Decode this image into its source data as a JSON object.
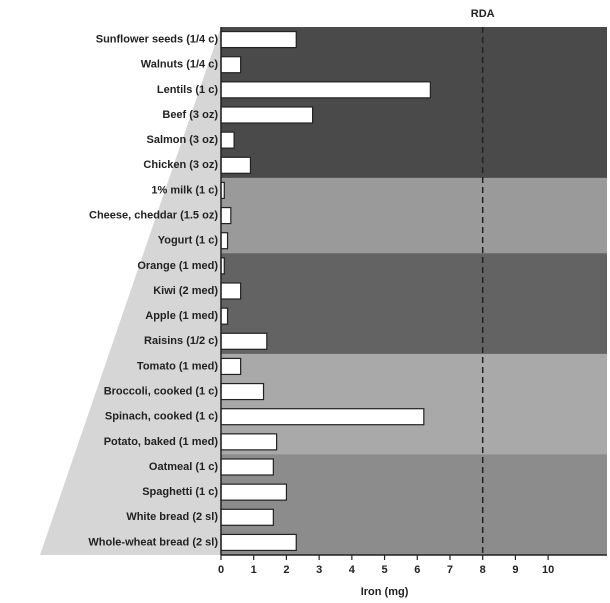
{
  "chart_data": {
    "type": "barh",
    "xlabel": "Iron (mg)",
    "categories": [
      "Sunflower seeds (1/4 c)",
      "Walnuts (1/4 c)",
      "Lentils (1 c)",
      "Beef (3 oz)",
      "Salmon (3 oz)",
      "Chicken (3 oz)",
      "1% milk (1 c)",
      "Cheese, cheddar (1.5 oz)",
      "Yogurt (1 c)",
      "Orange (1 med)",
      "Kiwi (2 med)",
      "Apple (1 med)",
      "Raisins (1/2 c)",
      "Tomato (1 med)",
      "Broccoli, cooked (1 c)",
      "Spinach, cooked (1 c)",
      "Potato, baked (1 med)",
      "Oatmeal (1 c)",
      "Spaghetti (1 c)",
      "White bread (2 sl)",
      "Whole-wheat bread (2 sl)"
    ],
    "values": [
      2.3,
      0.6,
      6.4,
      2.8,
      0.4,
      0.9,
      0.1,
      0.3,
      0.2,
      0.1,
      0.6,
      0.2,
      1.4,
      0.6,
      1.3,
      6.2,
      1.7,
      1.6,
      2.0,
      1.6,
      2.3
    ],
    "color": "#ffffff",
    "band_colors": [
      "#4a4a4a",
      "#4a4a4a",
      "#4a4a4a",
      "#4a4a4a",
      "#4a4a4a",
      "#4a4a4a",
      "#9a9a9a",
      "#9a9a9a",
      "#9a9a9a",
      "#636363",
      "#636363",
      "#636363",
      "#636363",
      "#a9a9a9",
      "#a9a9a9",
      "#a9a9a9",
      "#a9a9a9",
      "#8c8c8c",
      "#8c8c8c",
      "#8c8c8c",
      "#8c8c8c"
    ],
    "reference_line": {
      "value": 8,
      "label": "RDA"
    },
    "xlim": [
      0,
      11.8
    ],
    "xticks": [
      0,
      1,
      2,
      3,
      4,
      5,
      6,
      7,
      8,
      9,
      10
    ]
  }
}
